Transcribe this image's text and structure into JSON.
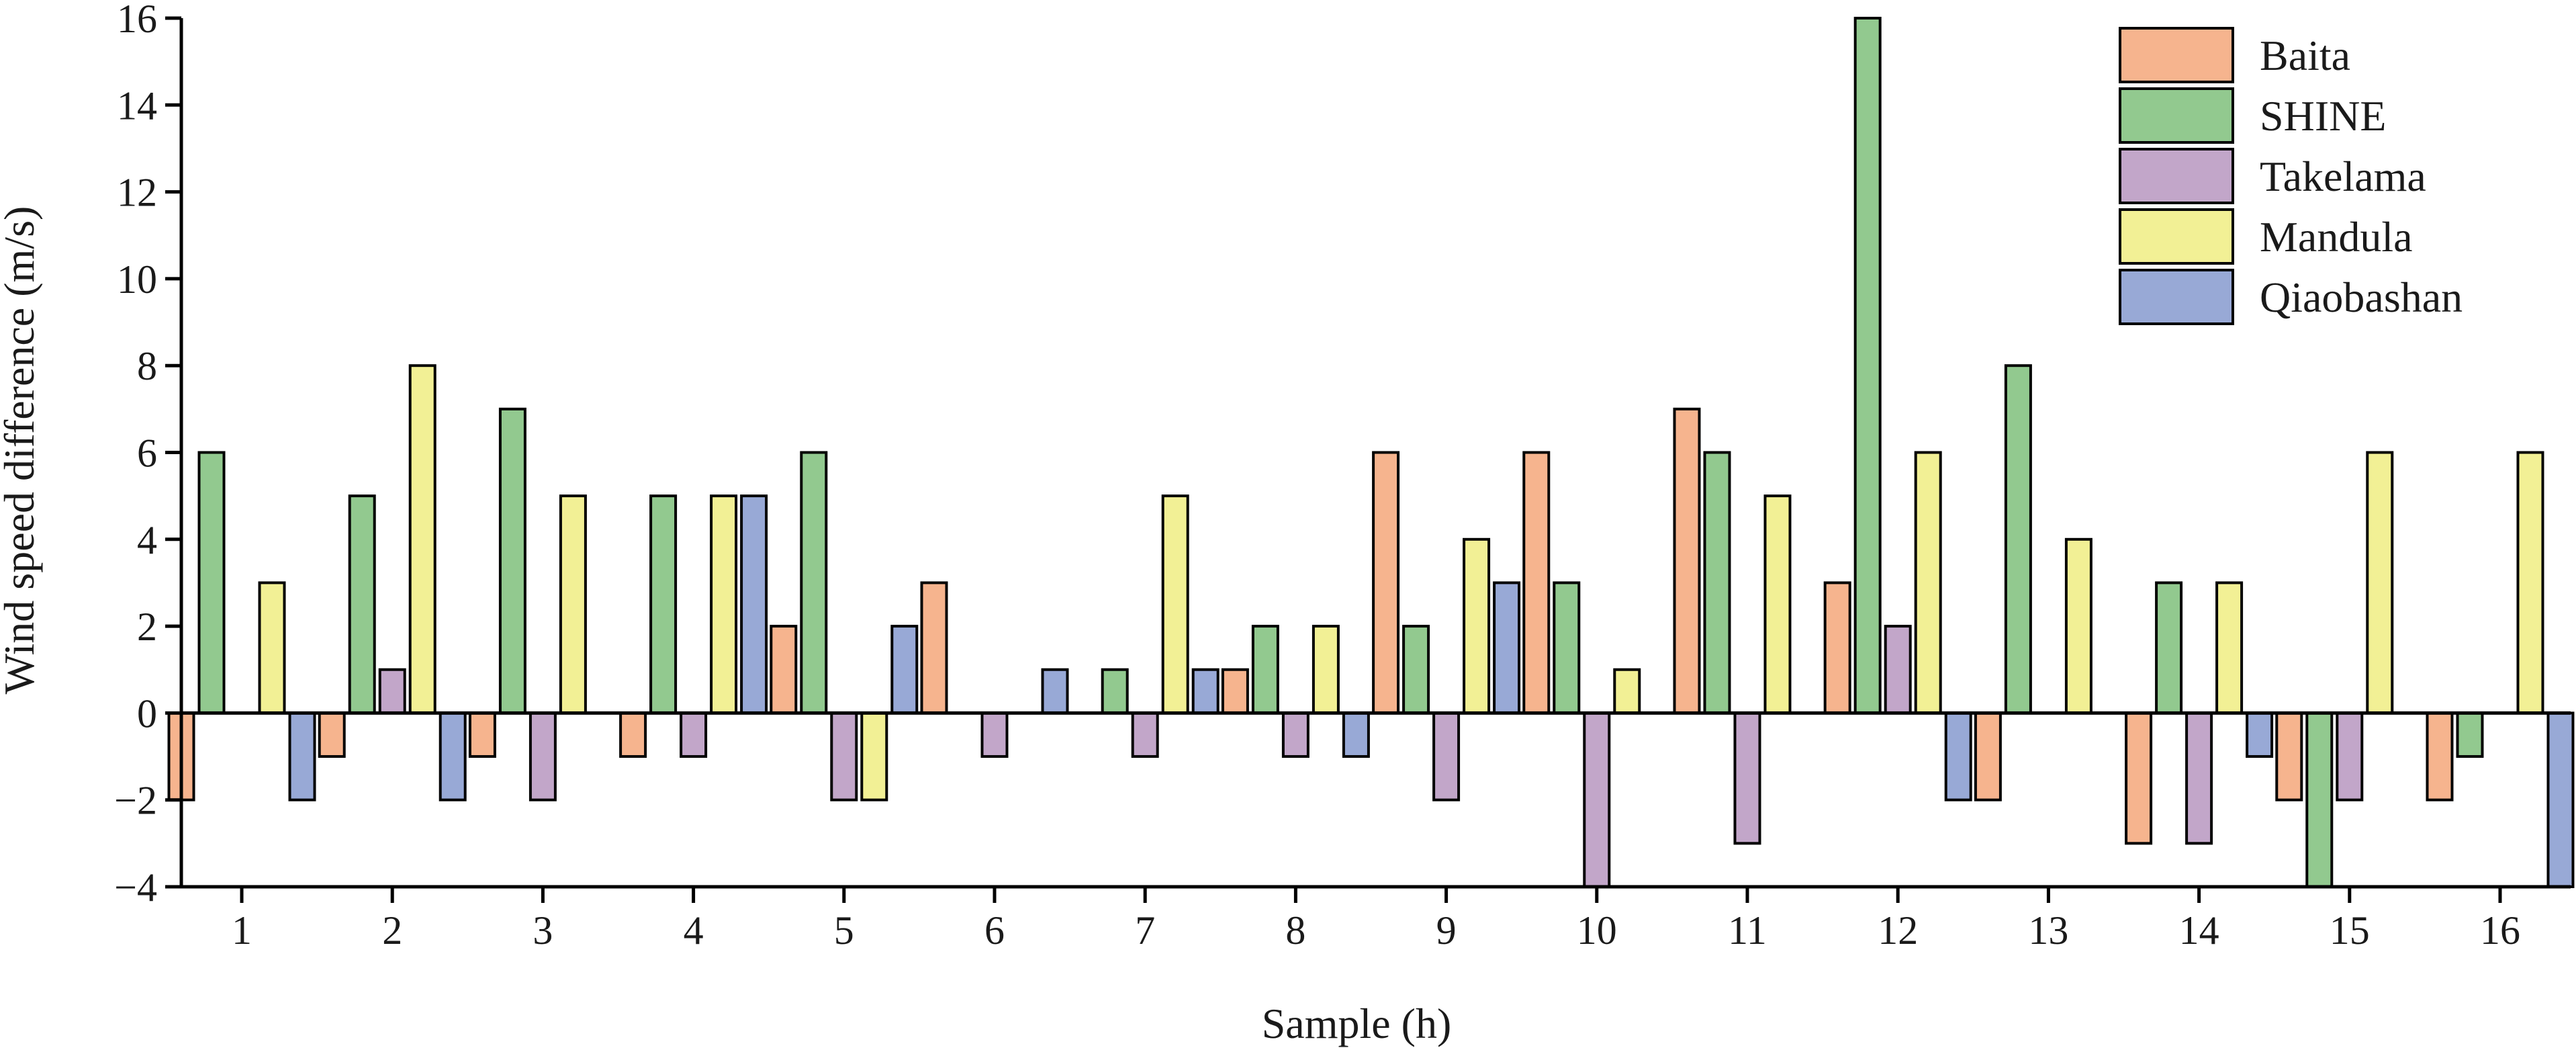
{
  "chart_data": {
    "type": "bar",
    "title": "",
    "xlabel": "Sample (h)",
    "ylabel": "Wind speed difference (m/s)",
    "ylim": [
      -4,
      16
    ],
    "yticks": [
      -4,
      -2,
      0,
      2,
      4,
      6,
      8,
      10,
      12,
      14,
      16
    ],
    "ytick_labels": [
      "−4",
      "−2",
      "0",
      "2",
      "4",
      "6",
      "8",
      "10",
      "12",
      "14",
      "16"
    ],
    "categories": [
      "1",
      "2",
      "3",
      "4",
      "5",
      "6",
      "7",
      "8",
      "9",
      "10",
      "11",
      "12",
      "13",
      "14",
      "15",
      "16"
    ],
    "legend_position": "top-right",
    "grid": false,
    "series": [
      {
        "name": "Baita",
        "color": "#F6B48E",
        "values": [
          -2,
          -1,
          -1,
          -1,
          2,
          3,
          0,
          1,
          6,
          6,
          7,
          3,
          -2,
          -3,
          -2,
          -2
        ]
      },
      {
        "name": "SHINE",
        "color": "#92C98F",
        "values": [
          6,
          5,
          7,
          5,
          6,
          0,
          1,
          2,
          2,
          3,
          6,
          16,
          8,
          3,
          -4,
          -1
        ]
      },
      {
        "name": "Takelama",
        "color": "#C2A6C9",
        "values": [
          0,
          1,
          -2,
          -1,
          -2,
          -1,
          -1,
          -1,
          -2,
          -4,
          -3,
          2,
          0,
          -3,
          -2,
          0
        ]
      },
      {
        "name": "Mandula",
        "color": "#F2F095",
        "values": [
          3,
          8,
          5,
          5,
          -2,
          0,
          5,
          2,
          4,
          1,
          5,
          6,
          4,
          3,
          6,
          6
        ]
      },
      {
        "name": "Qiaobashan",
        "color": "#98A9D6",
        "values": [
          -2,
          -2,
          0,
          5,
          2,
          1,
          1,
          -1,
          3,
          0,
          0,
          -2,
          0,
          -1,
          0,
          -4
        ]
      }
    ]
  }
}
